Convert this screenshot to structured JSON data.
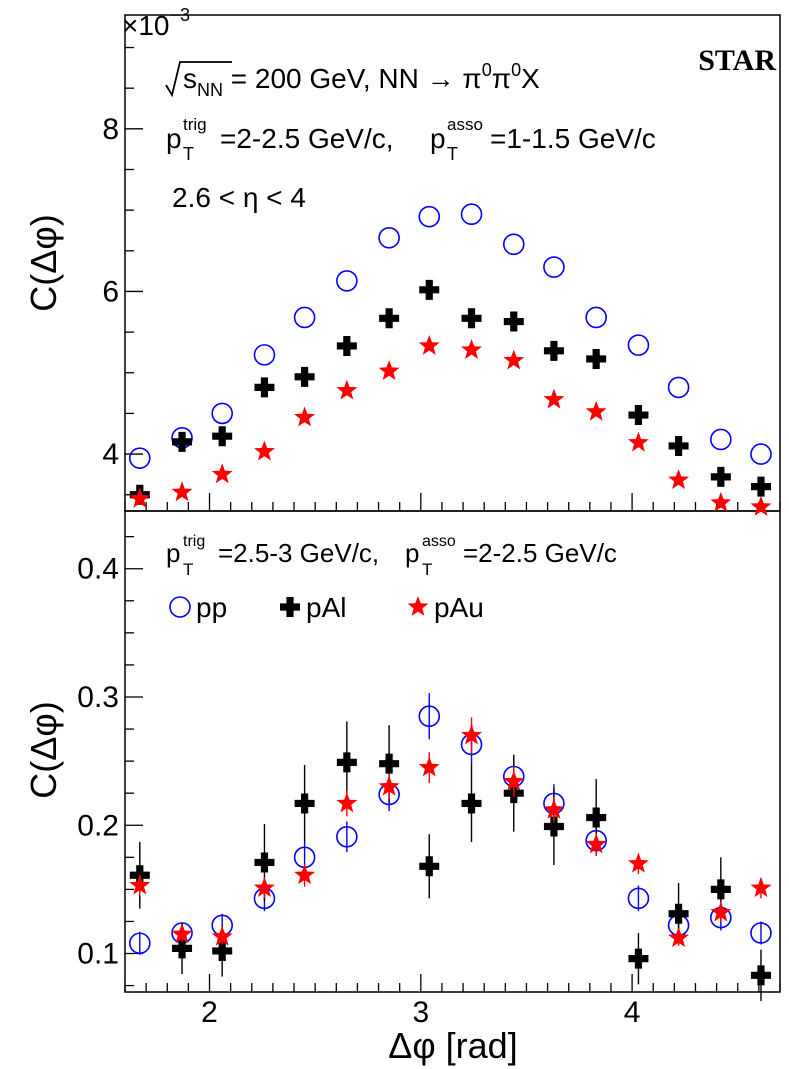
{
  "chart_data": [
    {
      "panel": "top",
      "type": "scatter",
      "ylabel": "C(Δφ)",
      "ymult": "×10",
      "ymult_exp": "−3",
      "ylim": [
        3.3,
        9.4
      ],
      "xlim": [
        1.6,
        4.7
      ],
      "yticks": [
        4,
        6,
        8
      ],
      "ytick_labels": [
        "4",
        "6",
        "8"
      ],
      "experiment": "STAR",
      "annotations": {
        "energy_text": "s",
        "energy_sub": "NN",
        "energy_rest": " = 200 GeV, NN → π",
        "energy_sup1": "0",
        "energy_mid": "π",
        "energy_sup2": "0",
        "energy_end": "X",
        "pt_p": "p",
        "pt_sup1": "trig",
        "pt_sub1": "T",
        "pt_val1": "=2-2.5 GeV/c, ",
        "pt_p2": "p",
        "pt_sup2": "asso",
        "pt_sub2": "T",
        "pt_val2": "=1-1.5 GeV/c",
        "eta": "2.6 < η < 4"
      },
      "x": [
        1.67,
        1.87,
        2.06,
        2.26,
        2.45,
        2.65,
        2.85,
        3.04,
        3.24,
        3.44,
        3.63,
        3.83,
        4.03,
        4.22,
        4.42,
        4.61
      ],
      "series": [
        {
          "name": "pp",
          "marker": "open-circle",
          "color": "#0000ff",
          "values": [
            3.95,
            4.2,
            4.5,
            5.22,
            5.68,
            6.13,
            6.66,
            6.92,
            6.95,
            6.58,
            6.3,
            5.68,
            5.34,
            4.82,
            4.18,
            4.0
          ]
        },
        {
          "name": "pAl",
          "marker": "cross",
          "color": "#000000",
          "values": [
            3.5,
            4.15,
            4.22,
            4.82,
            4.95,
            5.33,
            5.67,
            6.02,
            5.67,
            5.63,
            5.27,
            5.17,
            4.48,
            4.1,
            3.72,
            3.6
          ]
        },
        {
          "name": "pAu",
          "marker": "star",
          "color": "#ff0000",
          "values": [
            3.45,
            3.53,
            3.75,
            4.03,
            4.45,
            4.78,
            5.02,
            5.33,
            5.28,
            5.15,
            4.67,
            4.52,
            4.14,
            3.68,
            3.4,
            3.35
          ]
        }
      ]
    },
    {
      "panel": "bottom",
      "type": "scatter",
      "xlabel": "Δφ [rad]",
      "ylabel": "C(Δφ)",
      "ylim": [
        0.07,
        0.445
      ],
      "xlim": [
        1.6,
        4.7
      ],
      "xticks": [
        2,
        3,
        4
      ],
      "xtick_labels": [
        "2",
        "3",
        "4"
      ],
      "yticks": [
        0.1,
        0.2,
        0.3,
        0.4
      ],
      "ytick_labels": [
        "0.1",
        "0.2",
        "0.3",
        "0.4"
      ],
      "annotations": {
        "pt_p": "p",
        "pt_sup1": "trig",
        "pt_sub1": "T",
        "pt_val1": "=2.5-3 GeV/c, ",
        "pt_p2": "p",
        "pt_sup2": "asso",
        "pt_sub2": "T",
        "pt_val2": "=2-2.5 GeV/c"
      },
      "legend": [
        "pp",
        "pAl",
        "pAu"
      ],
      "x": [
        1.67,
        1.87,
        2.06,
        2.26,
        2.45,
        2.65,
        2.85,
        3.04,
        3.24,
        3.44,
        3.63,
        3.83,
        4.03,
        4.22,
        4.42,
        4.61
      ],
      "series": [
        {
          "name": "pp",
          "marker": "open-circle",
          "color": "#0000ff",
          "values": [
            0.108,
            0.116,
            0.122,
            0.143,
            0.175,
            0.191,
            0.224,
            0.285,
            0.263,
            0.238,
            0.217,
            0.188,
            0.143,
            0.122,
            0.128,
            0.116
          ],
          "errors": [
            0.009,
            0.008,
            0.009,
            0.01,
            0.012,
            0.012,
            0.013,
            0.018,
            0.016,
            0.015,
            0.015,
            0.012,
            0.01,
            0.009,
            0.01,
            0.009
          ]
        },
        {
          "name": "pAl",
          "marker": "cross",
          "color": "#000000",
          "values": [
            0.161,
            0.104,
            0.102,
            0.171,
            0.217,
            0.249,
            0.248,
            0.168,
            0.217,
            0.225,
            0.199,
            0.206,
            0.096,
            0.131,
            0.15,
            0.083
          ],
          "errors": [
            0.026,
            0.02,
            0.02,
            0.03,
            0.03,
            0.032,
            0.03,
            0.025,
            0.03,
            0.03,
            0.03,
            0.03,
            0.02,
            0.024,
            0.025,
            0.02
          ]
        },
        {
          "name": "pAu",
          "marker": "star",
          "color": "#ff0000",
          "values": [
            0.153,
            0.115,
            0.113,
            0.151,
            0.161,
            0.217,
            0.23,
            0.245,
            0.27,
            0.234,
            0.212,
            0.185,
            0.17,
            0.112,
            0.132,
            0.151
          ],
          "errors": [
            0.008,
            0.006,
            0.006,
            0.008,
            0.009,
            0.01,
            0.01,
            0.012,
            0.014,
            0.012,
            0.01,
            0.009,
            0.008,
            0.006,
            0.007,
            0.008
          ]
        }
      ]
    }
  ]
}
